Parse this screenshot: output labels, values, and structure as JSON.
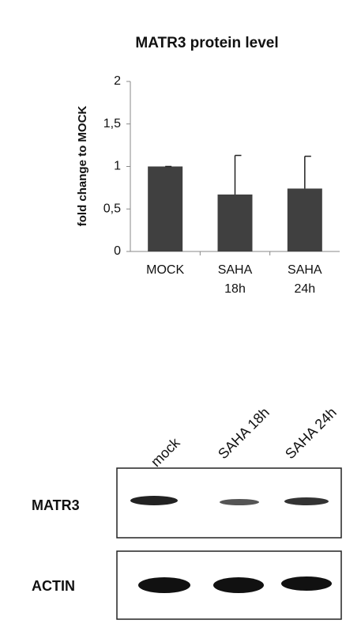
{
  "chart_data": {
    "type": "bar",
    "title": "MATR3 protein level",
    "y_label": "fold change to MOCK",
    "categories": [
      "MOCK",
      "SAHA 18h",
      "SAHA 24h"
    ],
    "values": [
      1,
      0.67,
      0.74
    ],
    "errors": [
      0,
      0.46,
      0.38
    ],
    "color": "#404040",
    "ylim": [
      0,
      2
    ],
    "yticks": [
      0,
      {
        "value": 0.5,
        "label": "0,5"
      },
      1,
      {
        "value": 1.5,
        "label": "1,5"
      },
      2
    ],
    "grid": false
  },
  "blot": {
    "lanes": [
      "mock",
      "SAHA 18h",
      "SAHA 24h"
    ],
    "rows": [
      "MATR3",
      "ACTIN"
    ]
  }
}
